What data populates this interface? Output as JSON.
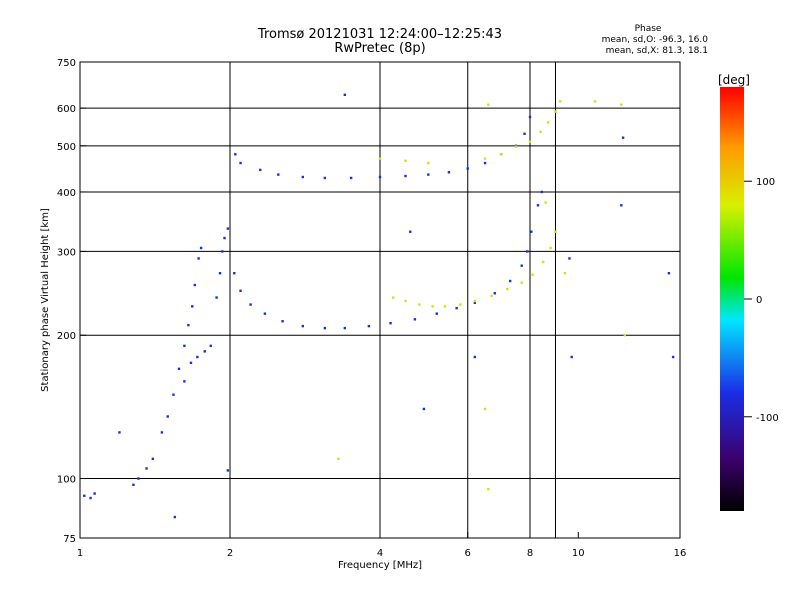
{
  "header": {
    "title": "Tromsø 20121031 12:24:00–12:25:43",
    "subtitle": "RwPretec (8p)",
    "phase_title": "Phase",
    "phase_line_o": "mean, sd,O: -96.3, 16.0",
    "phase_line_x": "mean, sd,X:  81.3, 18.1"
  },
  "chart_data": {
    "type": "scatter",
    "title": "Tromsø 20121031 12:24:00–12:25:43",
    "subtitle": "RwPretec (8p)",
    "xlabel": "Frequency [MHz]",
    "ylabel": "Stationary phase Virtual Height [km]",
    "x_scale": "log",
    "y_scale": "log",
    "xlim": [
      1,
      16
    ],
    "ylim": [
      75,
      750
    ],
    "x_ticks": [
      1,
      2,
      4,
      6,
      8,
      10,
      16
    ],
    "x_tick_labels": [
      "1",
      "2",
      "4",
      "6",
      "8",
      "10",
      "16"
    ],
    "y_ticks": [
      75,
      100,
      200,
      300,
      400,
      500,
      600,
      750
    ],
    "y_tick_labels": [
      "75",
      "100",
      "200",
      "300",
      "400",
      "500",
      "600",
      "750"
    ],
    "grid": true,
    "grid_x": [
      2,
      4,
      6,
      8,
      9
    ],
    "grid_y": [
      100,
      200,
      300,
      400,
      500,
      600
    ],
    "colorbar": {
      "label": "[deg]",
      "range": [
        -180,
        180
      ],
      "ticks": [
        100,
        0,
        -100
      ],
      "tick_labels": [
        "100",
        "0",
        "-100"
      ]
    },
    "series": [
      {
        "name": "O",
        "color": "#1a2ee6",
        "points": [
          [
            1.02,
            92
          ],
          [
            1.05,
            91
          ],
          [
            1.07,
            93
          ],
          [
            1.28,
            97
          ],
          [
            1.31,
            100
          ],
          [
            1.36,
            105
          ],
          [
            1.4,
            110
          ],
          [
            1.46,
            125
          ],
          [
            1.5,
            135
          ],
          [
            1.54,
            150
          ],
          [
            1.58,
            170
          ],
          [
            1.62,
            190
          ],
          [
            1.65,
            210
          ],
          [
            1.68,
            230
          ],
          [
            1.7,
            255
          ],
          [
            1.73,
            290
          ],
          [
            1.75,
            305
          ],
          [
            1.62,
            160
          ],
          [
            1.67,
            175
          ],
          [
            1.72,
            180
          ],
          [
            1.78,
            185
          ],
          [
            1.83,
            190
          ],
          [
            1.88,
            240
          ],
          [
            1.91,
            270
          ],
          [
            1.93,
            300
          ],
          [
            1.95,
            320
          ],
          [
            1.98,
            335
          ],
          [
            2.04,
            270
          ],
          [
            2.1,
            248
          ],
          [
            2.2,
            232
          ],
          [
            2.35,
            222
          ],
          [
            2.55,
            214
          ],
          [
            2.8,
            209
          ],
          [
            3.1,
            207
          ],
          [
            3.4,
            207
          ],
          [
            3.8,
            209
          ],
          [
            4.2,
            212
          ],
          [
            4.7,
            216
          ],
          [
            5.2,
            222
          ],
          [
            5.7,
            228
          ],
          [
            6.2,
            234
          ],
          [
            6.8,
            245
          ],
          [
            7.3,
            260
          ],
          [
            7.7,
            280
          ],
          [
            7.9,
            300
          ],
          [
            8.05,
            330
          ],
          [
            8.3,
            375
          ],
          [
            8.45,
            400
          ],
          [
            2.05,
            480
          ],
          [
            2.1,
            460
          ],
          [
            2.3,
            445
          ],
          [
            2.5,
            435
          ],
          [
            2.8,
            430
          ],
          [
            3.1,
            428
          ],
          [
            3.5,
            428
          ],
          [
            4.0,
            430
          ],
          [
            4.5,
            432
          ],
          [
            5.0,
            435
          ],
          [
            5.5,
            440
          ],
          [
            6.0,
            448
          ],
          [
            6.5,
            460
          ],
          [
            7.0,
            480
          ],
          [
            7.5,
            500
          ],
          [
            7.8,
            530
          ],
          [
            8.0,
            575
          ],
          [
            1.55,
            83
          ],
          [
            1.2,
            125
          ],
          [
            3.4,
            640
          ],
          [
            6.2,
            180
          ],
          [
            9.6,
            290
          ],
          [
            9.7,
            180
          ],
          [
            15.5,
            180
          ],
          [
            15.2,
            270
          ],
          [
            12.2,
            375
          ],
          [
            12.3,
            520
          ],
          [
            4.6,
            330
          ],
          [
            4.9,
            140
          ],
          [
            1.98,
            104
          ]
        ]
      },
      {
        "name": "X",
        "color": "#c8e61a",
        "points": [
          [
            4.25,
            240
          ],
          [
            4.5,
            236
          ],
          [
            4.8,
            232
          ],
          [
            5.1,
            230
          ],
          [
            5.4,
            230
          ],
          [
            5.8,
            232
          ],
          [
            6.2,
            236
          ],
          [
            6.7,
            242
          ],
          [
            7.2,
            250
          ],
          [
            7.7,
            258
          ],
          [
            8.1,
            268
          ],
          [
            8.5,
            285
          ],
          [
            8.8,
            305
          ],
          [
            9.0,
            330
          ],
          [
            4.0,
            470
          ],
          [
            4.5,
            465
          ],
          [
            5.0,
            460
          ],
          [
            6.5,
            470
          ],
          [
            7.0,
            480
          ],
          [
            7.5,
            498
          ],
          [
            8.0,
            510
          ],
          [
            8.4,
            535
          ],
          [
            8.7,
            560
          ],
          [
            9.0,
            590
          ],
          [
            9.2,
            620
          ],
          [
            6.6,
            610
          ],
          [
            6.5,
            140
          ],
          [
            6.6,
            95
          ],
          [
            3.3,
            110
          ],
          [
            12.2,
            610
          ],
          [
            12.4,
            200
          ],
          [
            10.8,
            620
          ],
          [
            8.6,
            380
          ],
          [
            9.4,
            270
          ]
        ]
      }
    ]
  }
}
